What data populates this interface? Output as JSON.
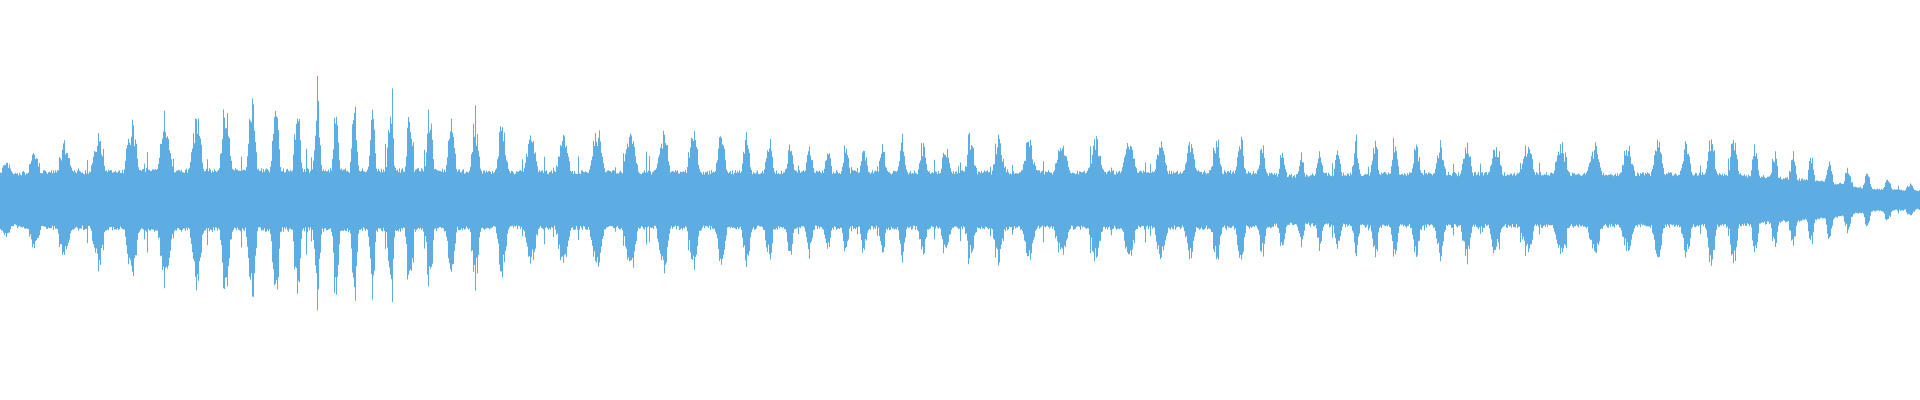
{
  "chart_data": {
    "type": "waveform",
    "color": "#5dade2",
    "background": "#ffffff",
    "amplitude_range": [
      -1,
      1
    ],
    "grid": false,
    "axes": false,
    "legend": "none",
    "peak_envelope": [
      0.2,
      0.3,
      0.37,
      0.46,
      0.52,
      0.55,
      0.58,
      0.6,
      0.58,
      0.52,
      0.45,
      0.4,
      0.4,
      0.4,
      0.4,
      0.37,
      0.34,
      0.31,
      0.31,
      0.32,
      0.33,
      0.34,
      0.33,
      0.34,
      0.34,
      0.34,
      0.35,
      0.22,
      0.31,
      0.32,
      0.31,
      0.31,
      0.31,
      0.31,
      0.31,
      0.31,
      0.37,
      0.28,
      0.24,
      0.14,
      0.08
    ],
    "core_envelope": [
      0.14,
      0.15,
      0.15,
      0.16,
      0.16,
      0.16,
      0.16,
      0.16,
      0.16,
      0.16,
      0.15,
      0.15,
      0.15,
      0.15,
      0.15,
      0.15,
      0.15,
      0.15,
      0.15,
      0.15,
      0.15,
      0.15,
      0.15,
      0.15,
      0.15,
      0.15,
      0.15,
      0.13,
      0.14,
      0.14,
      0.14,
      0.14,
      0.14,
      0.14,
      0.14,
      0.14,
      0.14,
      0.12,
      0.1,
      0.06,
      0.05
    ]
  }
}
